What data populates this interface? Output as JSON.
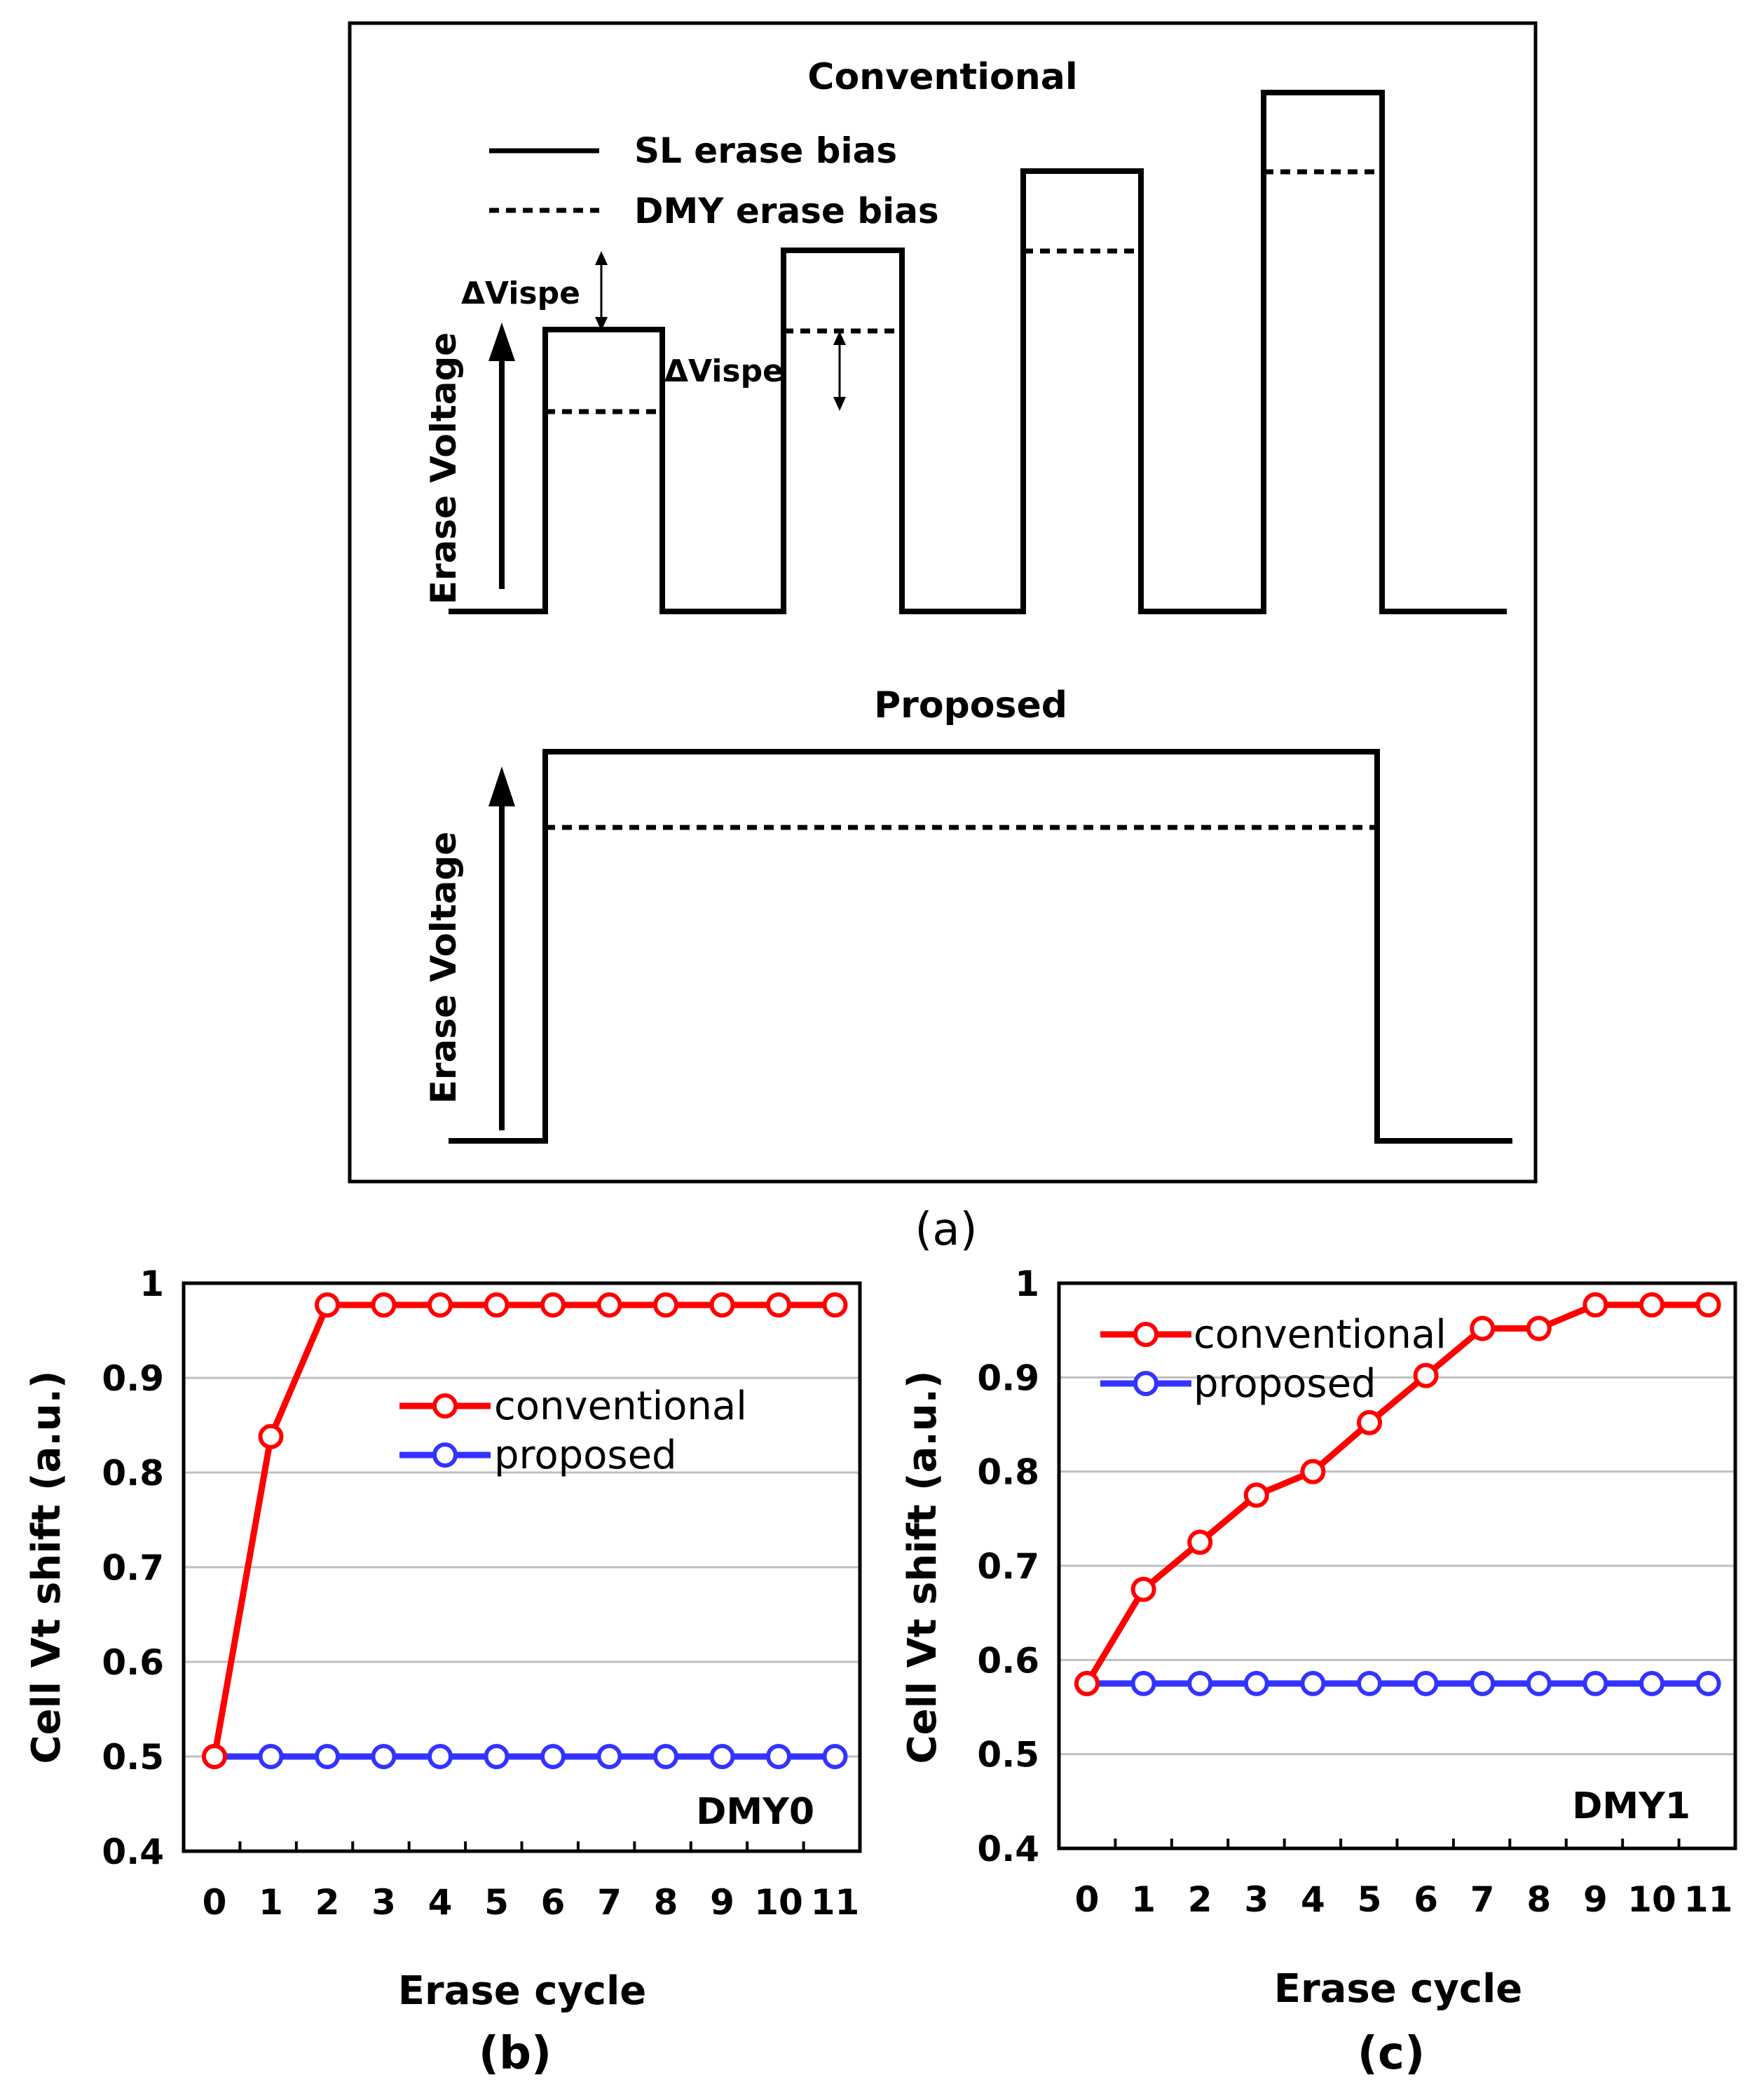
{
  "panel_a": {
    "label": "(a)",
    "conventional": {
      "title": "Conventional",
      "y_label": "Erase Voltage",
      "legend": [
        "SL erase bias",
        "DMY erase bias"
      ],
      "delta_label_1": "ΔVispe",
      "delta_label_2": "ΔVispe"
    },
    "proposed": {
      "title": "Proposed",
      "y_label": "Erase Voltage"
    }
  },
  "chart_data": [
    {
      "id": "b",
      "type": "line",
      "label": "(b)",
      "annotation": "DMY0",
      "xlabel": "Erase cycle",
      "ylabel": "Cell Vt shift (a.u.)",
      "x": [
        0,
        1,
        2,
        3,
        4,
        5,
        6,
        7,
        8,
        9,
        10,
        11
      ],
      "ylim": [
        0.4,
        1
      ],
      "yticks": [
        0.4,
        0.5,
        0.6,
        0.7,
        0.8,
        0.9,
        1
      ],
      "ytick_labels": [
        "0.4",
        "0.5",
        "0.6",
        "0.7",
        "0.8",
        "0.9",
        "1"
      ],
      "grid": true,
      "legend_position": "center-right",
      "series": [
        {
          "name": "conventional",
          "color": "#ff0000",
          "values": [
            0.5,
            0.838,
            0.977,
            0.977,
            0.977,
            0.977,
            0.977,
            0.977,
            0.977,
            0.977,
            0.977,
            0.977
          ]
        },
        {
          "name": "proposed",
          "color": "#3333ff",
          "values": [
            0.5,
            0.5,
            0.5,
            0.5,
            0.5,
            0.5,
            0.5,
            0.5,
            0.5,
            0.5,
            0.5,
            0.5
          ]
        }
      ]
    },
    {
      "id": "c",
      "type": "line",
      "label": "(c)",
      "annotation": "DMY1",
      "xlabel": "Erase cycle",
      "ylabel": "Cell Vt shift (a.u.)",
      "x": [
        0,
        1,
        2,
        3,
        4,
        5,
        6,
        7,
        8,
        9,
        10,
        11
      ],
      "ylim": [
        0.4,
        1
      ],
      "yticks": [
        0.4,
        0.5,
        0.6,
        0.7,
        0.8,
        0.9,
        1
      ],
      "ytick_labels": [
        "0.4",
        "0.5",
        "0.6",
        "0.7",
        "0.8",
        "0.9",
        "1"
      ],
      "grid": true,
      "legend_position": "top-left",
      "series": [
        {
          "name": "conventional",
          "color": "#ff0000",
          "values": [
            0.575,
            0.675,
            0.725,
            0.775,
            0.8,
            0.852,
            0.902,
            0.952,
            0.952,
            0.977,
            0.977,
            0.977
          ]
        },
        {
          "name": "proposed",
          "color": "#3333ff",
          "values": [
            0.575,
            0.575,
            0.575,
            0.575,
            0.575,
            0.575,
            0.575,
            0.575,
            0.575,
            0.575,
            0.575,
            0.575
          ]
        }
      ]
    }
  ]
}
